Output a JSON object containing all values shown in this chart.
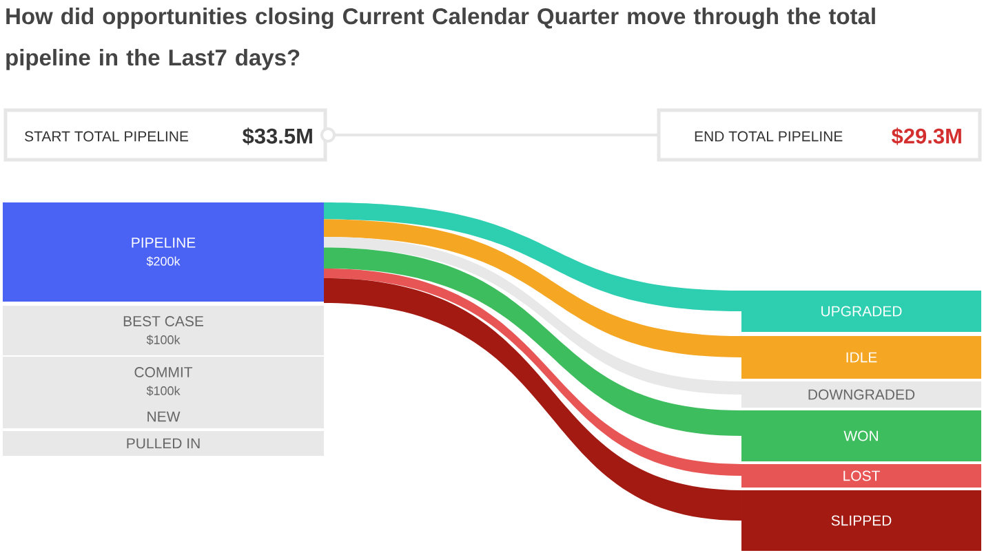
{
  "chart_data": [
    {
      "type": "other",
      "title": "How did opportunities closing Current Calendar Quarter move through the total pipeline in the Last7 days?",
      "annotations": [
        "START TOTAL PIPELINE",
        "$33.5M",
        "END  TOTAL PIPELINE",
        "$29.3M"
      ],
      "categories": [
        "PIPELINE",
        "BEST CASE",
        "COMMIT",
        "NEW",
        "PULLED IN"
      ],
      "values": [
        200,
        100,
        100,
        null,
        null
      ],
      "value_labels": [
        "$200k",
        "$100k",
        "$100k",
        null,
        null
      ],
      "colors": [
        "#4a63f5",
        "#e8e8e8",
        "#e8e8e8",
        "#e8e8e8",
        "#e8e8e8"
      ]
    },
    {
      "type": "other",
      "categories": [
        "UPGRADED",
        "IDLE",
        "DOWNGRADED",
        "WON",
        "LOST",
        "SLIPPED"
      ],
      "colors": [
        "#2ecfb1",
        "#f5a623",
        "#e8e8e8",
        "#3dbd5e",
        "#e85555",
        "#a31a12"
      ]
    }
  ]
}
